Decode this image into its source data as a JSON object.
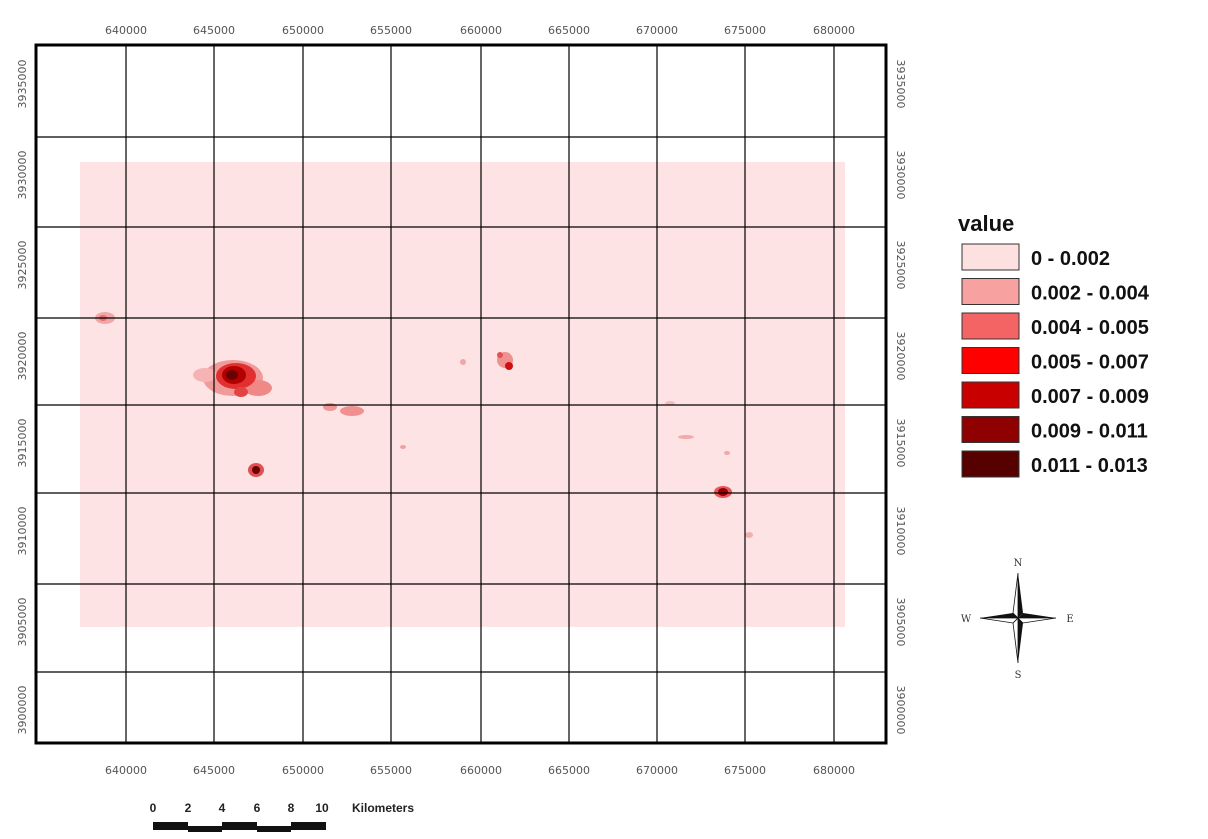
{
  "map": {
    "x_ticks": [
      "640000",
      "645000",
      "650000",
      "655000",
      "660000",
      "665000",
      "670000",
      "675000",
      "680000"
    ],
    "y_ticks": [
      "3935000",
      "3930000",
      "3925000",
      "3920000",
      "3915000",
      "3910000",
      "3905000",
      "3900000"
    ],
    "background_color": "#fde3e3"
  },
  "legend": {
    "title": "value",
    "classes": [
      {
        "label": "0 - 0.002",
        "color": "#fde0e0"
      },
      {
        "label": "0.002 - 0.004",
        "color": "#f7a1a1"
      },
      {
        "label": "0.004 - 0.005",
        "color": "#f46464"
      },
      {
        "label": "0.005 - 0.007",
        "color": "#ff0000"
      },
      {
        "label": "0.007 - 0.009",
        "color": "#c80000"
      },
      {
        "label": "0.009 - 0.011",
        "color": "#8f0000"
      },
      {
        "label": "0.011 - 0.013",
        "color": "#560000"
      }
    ]
  },
  "compass": {
    "n": "N",
    "s": "S",
    "e": "E",
    "w": "W"
  },
  "scalebar": {
    "ticks": [
      "0",
      "2",
      "4",
      "6",
      "8",
      "10"
    ],
    "unit": "Kilometers"
  }
}
